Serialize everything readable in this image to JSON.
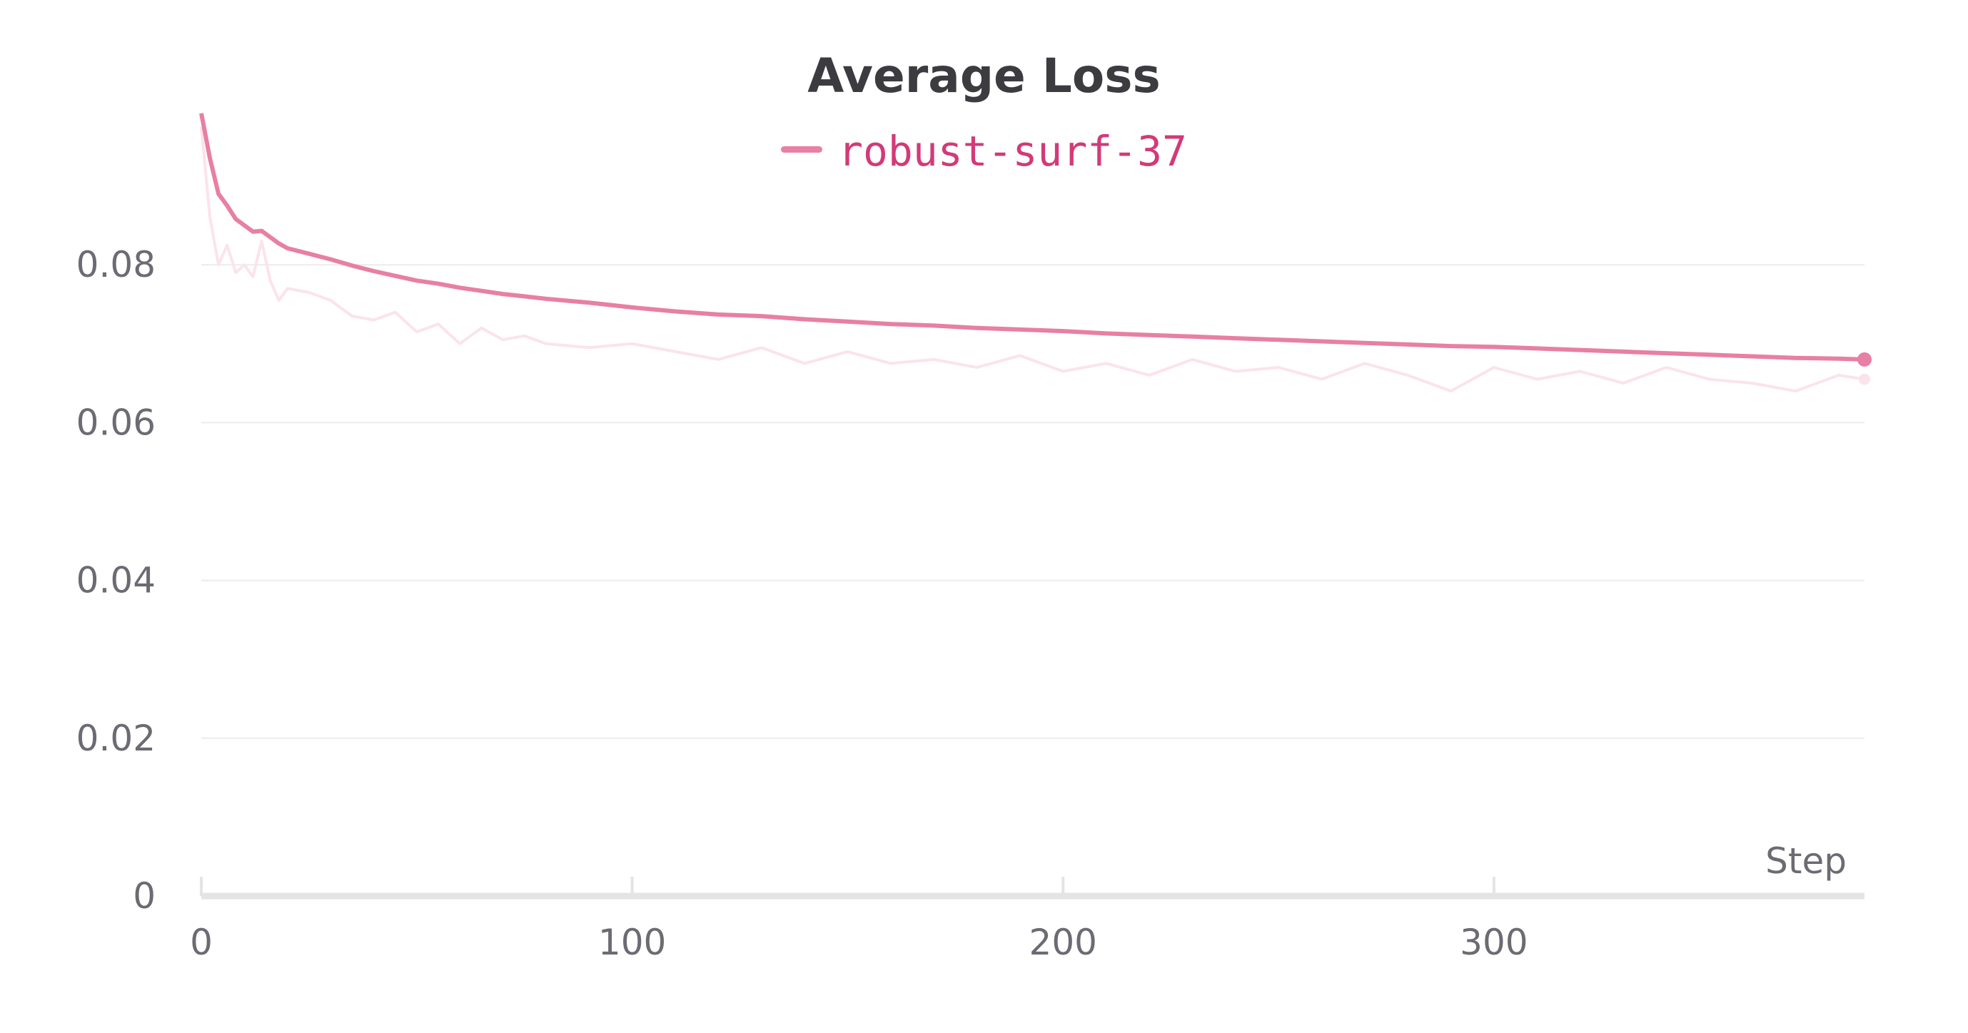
{
  "chart_data": {
    "type": "line",
    "title": "Average Loss",
    "xlabel": "Step",
    "ylabel": "",
    "xlim": [
      0,
      386
    ],
    "ylim": [
      0,
      0.1
    ],
    "x_ticks": [
      "0",
      "100",
      "200",
      "300"
    ],
    "y_ticks": [
      "0",
      "0.02",
      "0.04",
      "0.06",
      "0.08"
    ],
    "grid": true,
    "legend_position": "top-center",
    "colors": {
      "smoothed": "#e87fa4",
      "raw": "#fbe3ec",
      "title": "#3b3b40",
      "legend_text": "#d23a78",
      "axis": "#e4e4e4",
      "grid": "#ececec",
      "tick_text": "#6b6b73"
    },
    "series": [
      {
        "name": "robust-surf-37",
        "x": [
          0,
          2,
          4,
          6,
          8,
          10,
          12,
          14,
          16,
          18,
          20,
          25,
          30,
          35,
          40,
          45,
          50,
          55,
          60,
          65,
          70,
          75,
          80,
          90,
          100,
          110,
          120,
          130,
          140,
          150,
          160,
          170,
          180,
          190,
          200,
          210,
          220,
          230,
          240,
          250,
          260,
          270,
          280,
          290,
          300,
          310,
          320,
          330,
          340,
          350,
          360,
          370,
          380,
          386
        ],
        "smoothed": [
          0.0992,
          0.0935,
          0.089,
          0.0875,
          0.0858,
          0.085,
          0.0842,
          0.0843,
          0.0835,
          0.0827,
          0.0821,
          0.0814,
          0.0807,
          0.0799,
          0.0792,
          0.0786,
          0.078,
          0.0776,
          0.0771,
          0.0767,
          0.0763,
          0.076,
          0.0757,
          0.0752,
          0.0746,
          0.0741,
          0.0737,
          0.0735,
          0.0731,
          0.0728,
          0.0725,
          0.0723,
          0.072,
          0.0718,
          0.0716,
          0.0713,
          0.0711,
          0.0709,
          0.0707,
          0.0705,
          0.0703,
          0.0701,
          0.0699,
          0.0697,
          0.0696,
          0.0694,
          0.0692,
          0.069,
          0.0688,
          0.0686,
          0.0684,
          0.0682,
          0.0681,
          0.068
        ],
        "raw": [
          0.0975,
          0.086,
          0.08,
          0.0825,
          0.079,
          0.08,
          0.0785,
          0.083,
          0.078,
          0.0755,
          0.077,
          0.0765,
          0.0755,
          0.0735,
          0.073,
          0.074,
          0.0715,
          0.0725,
          0.07,
          0.072,
          0.0705,
          0.071,
          0.07,
          0.0695,
          0.07,
          0.069,
          0.068,
          0.0695,
          0.0675,
          0.069,
          0.0675,
          0.068,
          0.067,
          0.0685,
          0.0665,
          0.0675,
          0.066,
          0.068,
          0.0665,
          0.067,
          0.0655,
          0.0675,
          0.066,
          0.064,
          0.067,
          0.0655,
          0.0665,
          0.065,
          0.067,
          0.0655,
          0.065,
          0.064,
          0.066,
          0.0655
        ]
      }
    ]
  }
}
